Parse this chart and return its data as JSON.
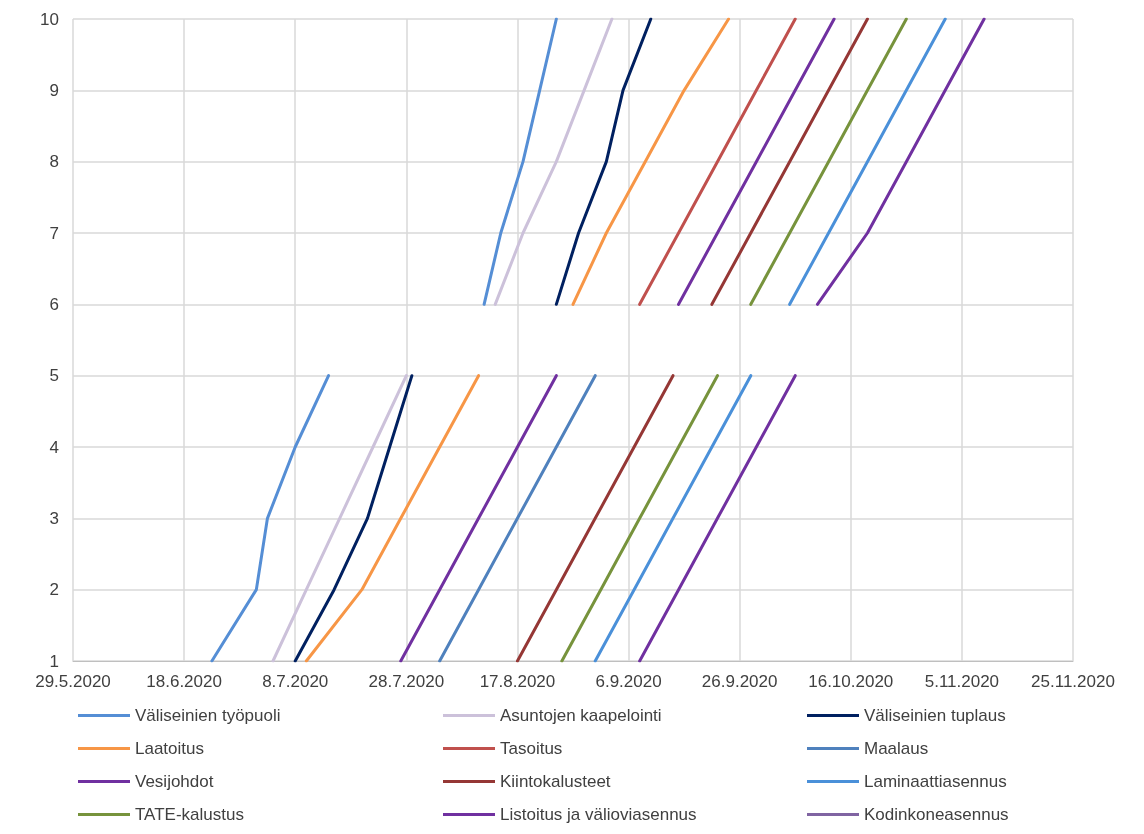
{
  "chart_data": {
    "type": "line",
    "xlim": [
      "2020-05-29",
      "2020-11-25"
    ],
    "xticks": [
      {
        "value": "2020-05-29",
        "label": "29.5.2020"
      },
      {
        "value": "2020-06-18",
        "label": "18.6.2020"
      },
      {
        "value": "2020-07-08",
        "label": "8.7.2020"
      },
      {
        "value": "2020-07-28",
        "label": "28.7.2020"
      },
      {
        "value": "2020-08-17",
        "label": "17.8.2020"
      },
      {
        "value": "2020-09-06",
        "label": "6.9.2020"
      },
      {
        "value": "2020-09-26",
        "label": "26.9.2020"
      },
      {
        "value": "2020-10-16",
        "label": "16.10.2020"
      },
      {
        "value": "2020-11-05",
        "label": "5.11.2020"
      },
      {
        "value": "2020-11-25",
        "label": "25.11.2020"
      }
    ],
    "ylim": [
      1,
      10
    ],
    "yticks": [
      1,
      2,
      3,
      4,
      5,
      6,
      7,
      8,
      9,
      10
    ],
    "grid": true,
    "legend": "bottom",
    "marker": "none",
    "line_style": "solid",
    "series": [
      {
        "name": "Väliseinien työpuoli",
        "color": "#558ed5",
        "x": [
          "2020-06-23",
          "2020-07-01",
          "2020-07-03",
          "2020-07-08",
          "2020-07-14",
          null,
          "2020-08-11",
          "2020-08-14",
          "2020-08-18",
          "2020-08-21",
          "2020-08-24"
        ],
        "values": [
          1,
          2,
          3,
          4,
          5,
          null,
          6,
          7,
          8,
          9,
          10
        ]
      },
      {
        "name": "Asuntojen kaapelointi",
        "color": "#ccc1da",
        "x": [
          "2020-07-04",
          "2020-07-10",
          "2020-07-16",
          "2020-07-22",
          "2020-07-28",
          null,
          "2020-08-13",
          "2020-08-18",
          "2020-08-24",
          "2020-08-29",
          "2020-09-03"
        ],
        "values": [
          1,
          2,
          3,
          4,
          5,
          null,
          6,
          7,
          8,
          9,
          10
        ]
      },
      {
        "name": "Väliseinien tuplaus",
        "color": "#002060",
        "x": [
          "2020-07-08",
          "2020-07-15",
          "2020-07-21",
          "2020-07-25",
          "2020-07-29",
          null,
          "2020-08-24",
          "2020-08-28",
          "2020-09-02",
          "2020-09-05",
          "2020-09-10"
        ],
        "values": [
          1,
          2,
          3,
          4,
          5,
          null,
          6,
          7,
          8,
          9,
          10
        ]
      },
      {
        "name": "Laatoitus",
        "color": "#f79646",
        "x": [
          "2020-07-10",
          "2020-07-20",
          "2020-07-27",
          "2020-08-03",
          "2020-08-10",
          null,
          "2020-08-27",
          "2020-09-02",
          "2020-09-09",
          "2020-09-16",
          "2020-09-24"
        ],
        "values": [
          1,
          2,
          3,
          4,
          5,
          null,
          6,
          7,
          8,
          9,
          10
        ]
      },
      {
        "name": "Tasoitus",
        "color": "#c0504d",
        "x": [
          "2020-09-08",
          "2020-09-15",
          "2020-09-22",
          "2020-09-29",
          "2020-10-06"
        ],
        "values": [
          6,
          7,
          8,
          9,
          10
        ]
      },
      {
        "name": "Maalaus",
        "color": "#4f81bd",
        "x": [
          "2020-08-03",
          "2020-08-10",
          "2020-08-17",
          "2020-08-24",
          "2020-08-31"
        ],
        "values": [
          1,
          2,
          3,
          4,
          5
        ]
      },
      {
        "name": "Vesijohdot",
        "color": "#7030a0",
        "x": [
          "2020-07-27",
          "2020-08-03",
          "2020-08-10",
          "2020-08-17",
          "2020-08-24",
          null,
          "2020-09-15",
          "2020-09-22",
          "2020-09-29",
          "2020-10-06",
          "2020-10-13"
        ],
        "values": [
          1,
          2,
          3,
          4,
          5,
          null,
          6,
          7,
          8,
          9,
          10
        ]
      },
      {
        "name": "Kiintokalusteet",
        "color": "#953735",
        "x": [
          "2020-08-17",
          "2020-08-24",
          "2020-08-31",
          "2020-09-07",
          "2020-09-14",
          null,
          "2020-09-21",
          "2020-09-28",
          "2020-10-05",
          "2020-10-12",
          "2020-10-19"
        ],
        "values": [
          1,
          2,
          3,
          4,
          5,
          null,
          6,
          7,
          8,
          9,
          10
        ]
      },
      {
        "name": "Laminaattiasennus",
        "color": "#4a90d9",
        "x": [
          "2020-08-31",
          "2020-09-07",
          "2020-09-14",
          "2020-09-21",
          "2020-09-28",
          null,
          "2020-10-05",
          "2020-10-12",
          "2020-10-19",
          "2020-10-26",
          "2020-11-02"
        ],
        "values": [
          1,
          2,
          3,
          4,
          5,
          null,
          6,
          7,
          8,
          9,
          10
        ]
      },
      {
        "name": "TATE-kalustus",
        "color": "#77933c",
        "x": [
          "2020-08-25",
          "2020-09-01",
          "2020-09-08",
          "2020-09-15",
          "2020-09-22",
          null,
          "2020-09-28",
          "2020-10-05",
          "2020-10-12",
          "2020-10-19",
          "2020-10-26"
        ],
        "values": [
          1,
          2,
          3,
          4,
          5,
          null,
          6,
          7,
          8,
          9,
          10
        ]
      },
      {
        "name": "Listoitus ja välioviasennus",
        "color": "#7030a0",
        "x": [
          "2020-09-08",
          "2020-09-15",
          "2020-09-22",
          "2020-09-29",
          "2020-10-06",
          null,
          "2020-10-10",
          "2020-10-19",
          "2020-10-26",
          "2020-11-02",
          "2020-11-09"
        ],
        "values": [
          1,
          2,
          3,
          4,
          5,
          null,
          6,
          7,
          8,
          9,
          10
        ]
      },
      {
        "name": "Kodinkoneasennus",
        "color": "#8064a2"
      }
    ]
  }
}
